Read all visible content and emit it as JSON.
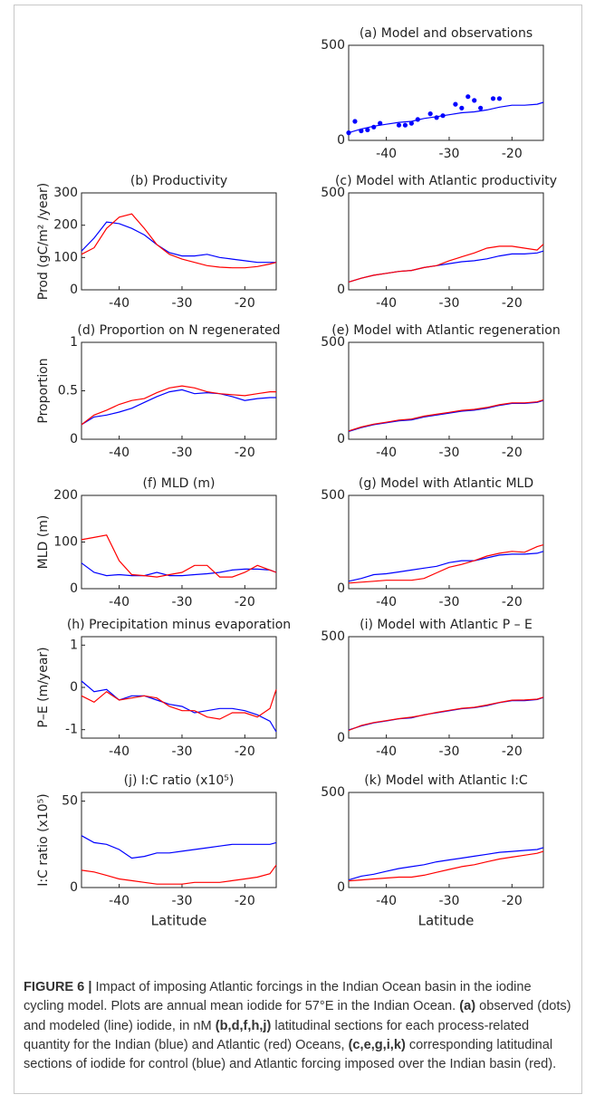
{
  "chart_data": [
    {
      "type": "line",
      "title": "(a) Model and observations",
      "x": [
        -46,
        -44,
        -42,
        -40,
        -38,
        -36,
        -34,
        -32,
        -30,
        -28,
        -26,
        -24,
        -22,
        -20,
        -18,
        -16,
        -15
      ],
      "xlim": [
        -46,
        -15
      ],
      "xticks": [
        -40,
        -30,
        -20
      ],
      "ylim": [
        0,
        500
      ],
      "yticks": [
        0,
        500
      ],
      "series": [
        {
          "color": "#0000ff",
          "values": [
            40,
            60,
            75,
            85,
            95,
            100,
            115,
            125,
            135,
            145,
            150,
            160,
            175,
            185,
            185,
            190,
            200
          ]
        },
        {
          "color": "#0000ff",
          "marker": "dot",
          "x": [
            -46,
            -45,
            -44,
            -43,
            -42,
            -41,
            -38,
            -37,
            -36,
            -35,
            -33,
            -32,
            -31,
            -29,
            -28,
            -27,
            -26,
            -25,
            -23,
            -22
          ],
          "values": [
            40,
            100,
            50,
            55,
            70,
            90,
            80,
            80,
            90,
            110,
            140,
            120,
            130,
            190,
            170,
            230,
            210,
            170,
            220,
            220
          ]
        }
      ]
    },
    {
      "type": "line",
      "title": "(b) Productivity",
      "ylabel": "Prod (gC/m² /year)",
      "x": [
        -46,
        -44,
        -42,
        -40,
        -38,
        -36,
        -34,
        -32,
        -30,
        -28,
        -26,
        -24,
        -22,
        -20,
        -18,
        -16,
        -15
      ],
      "xlim": [
        -46,
        -15
      ],
      "xticks": [
        -40,
        -30,
        -20
      ],
      "ylim": [
        0,
        300
      ],
      "yticks": [
        0,
        100,
        200,
        300
      ],
      "series": [
        {
          "color": "#0000ff",
          "values": [
            120,
            160,
            210,
            205,
            190,
            170,
            140,
            115,
            105,
            105,
            110,
            100,
            95,
            90,
            85,
            85,
            85
          ]
        },
        {
          "color": "#ff0000",
          "values": [
            110,
            130,
            190,
            225,
            235,
            190,
            140,
            110,
            95,
            85,
            75,
            70,
            68,
            68,
            72,
            80,
            85
          ]
        }
      ]
    },
    {
      "type": "line",
      "title": "(c) Model with Atlantic productivity",
      "x": [
        -46,
        -44,
        -42,
        -40,
        -38,
        -36,
        -34,
        -32,
        -30,
        -28,
        -26,
        -24,
        -22,
        -20,
        -18,
        -16,
        -15
      ],
      "xlim": [
        -46,
        -15
      ],
      "xticks": [
        -40,
        -30,
        -20
      ],
      "ylim": [
        0,
        500
      ],
      "yticks": [
        0,
        500
      ],
      "series": [
        {
          "color": "#0000ff",
          "values": [
            40,
            60,
            75,
            85,
            95,
            100,
            115,
            125,
            135,
            145,
            150,
            160,
            175,
            185,
            185,
            190,
            200
          ]
        },
        {
          "color": "#ff0000",
          "values": [
            40,
            60,
            75,
            85,
            95,
            100,
            115,
            125,
            150,
            170,
            190,
            215,
            225,
            225,
            215,
            205,
            235
          ]
        }
      ]
    },
    {
      "type": "line",
      "title": "(d) Proportion on N regenerated",
      "ylabel": "Proportion",
      "x": [
        -46,
        -44,
        -42,
        -40,
        -38,
        -36,
        -34,
        -32,
        -30,
        -28,
        -26,
        -24,
        -22,
        -20,
        -18,
        -16,
        -15
      ],
      "xlim": [
        -46,
        -15
      ],
      "xticks": [
        -40,
        -30,
        -20
      ],
      "ylim": [
        0,
        1
      ],
      "yticks": [
        0,
        0.5,
        1
      ],
      "series": [
        {
          "color": "#0000ff",
          "values": [
            0.15,
            0.23,
            0.25,
            0.28,
            0.32,
            0.38,
            0.44,
            0.49,
            0.51,
            0.47,
            0.48,
            0.47,
            0.44,
            0.4,
            0.42,
            0.43,
            0.43
          ]
        },
        {
          "color": "#ff0000",
          "values": [
            0.15,
            0.25,
            0.3,
            0.36,
            0.4,
            0.42,
            0.48,
            0.53,
            0.55,
            0.53,
            0.49,
            0.47,
            0.46,
            0.45,
            0.47,
            0.49,
            0.49
          ]
        }
      ]
    },
    {
      "type": "line",
      "title": "(e) Model with Atlantic regeneration",
      "x": [
        -46,
        -44,
        -42,
        -40,
        -38,
        -36,
        -34,
        -32,
        -30,
        -28,
        -26,
        -24,
        -22,
        -20,
        -18,
        -16,
        -15
      ],
      "xlim": [
        -46,
        -15
      ],
      "xticks": [
        -40,
        -30,
        -20
      ],
      "ylim": [
        0,
        500
      ],
      "yticks": [
        0,
        500
      ],
      "series": [
        {
          "color": "#0000ff",
          "values": [
            40,
            60,
            75,
            85,
            95,
            100,
            115,
            125,
            135,
            145,
            150,
            160,
            175,
            185,
            185,
            190,
            200
          ]
        },
        {
          "color": "#ff0000",
          "values": [
            43,
            63,
            78,
            88,
            99,
            104,
            119,
            129,
            139,
            149,
            154,
            164,
            178,
            188,
            188,
            193,
            203
          ]
        }
      ]
    },
    {
      "type": "line",
      "title": "(f) MLD (m)",
      "ylabel": "MLD (m)",
      "x": [
        -46,
        -44,
        -42,
        -40,
        -38,
        -36,
        -34,
        -32,
        -30,
        -28,
        -26,
        -24,
        -22,
        -20,
        -18,
        -16,
        -15
      ],
      "xlim": [
        -46,
        -15
      ],
      "xticks": [
        -40,
        -30,
        -20
      ],
      "ylim": [
        0,
        200
      ],
      "yticks": [
        0,
        100,
        200
      ],
      "series": [
        {
          "color": "#0000ff",
          "values": [
            55,
            35,
            28,
            30,
            28,
            28,
            35,
            28,
            28,
            30,
            32,
            35,
            40,
            42,
            42,
            40,
            35
          ]
        },
        {
          "color": "#ff0000",
          "values": [
            105,
            110,
            115,
            60,
            30,
            28,
            25,
            30,
            35,
            50,
            50,
            25,
            25,
            35,
            50,
            40,
            35
          ]
        }
      ]
    },
    {
      "type": "line",
      "title": "(g) Model with Atlantic MLD",
      "x": [
        -46,
        -44,
        -42,
        -40,
        -38,
        -36,
        -34,
        -32,
        -30,
        -28,
        -26,
        -24,
        -22,
        -20,
        -18,
        -16,
        -15
      ],
      "xlim": [
        -46,
        -15
      ],
      "xticks": [
        -40,
        -30,
        -20
      ],
      "ylim": [
        0,
        500
      ],
      "yticks": [
        0,
        500
      ],
      "series": [
        {
          "color": "#0000ff",
          "values": [
            40,
            55,
            75,
            80,
            90,
            100,
            110,
            120,
            140,
            150,
            150,
            165,
            180,
            185,
            185,
            190,
            200
          ]
        },
        {
          "color": "#ff0000",
          "values": [
            30,
            35,
            40,
            45,
            45,
            45,
            55,
            85,
            115,
            130,
            150,
            175,
            190,
            200,
            195,
            225,
            235
          ]
        }
      ]
    },
    {
      "type": "line",
      "title": "(h) Precipitation minus evaporation",
      "ylabel": "P–E (m/year)",
      "x": [
        -46,
        -44,
        -42,
        -40,
        -38,
        -36,
        -34,
        -32,
        -30,
        -28,
        -26,
        -24,
        -22,
        -20,
        -18,
        -16,
        -15
      ],
      "xlim": [
        -46,
        -15
      ],
      "xticks": [
        -40,
        -30,
        -20
      ],
      "ylim": [
        -1.2,
        1.2
      ],
      "yticks": [
        -1,
        0,
        1
      ],
      "series": [
        {
          "color": "#0000ff",
          "values": [
            0.15,
            -0.1,
            -0.05,
            -0.3,
            -0.2,
            -0.2,
            -0.3,
            -0.4,
            -0.45,
            -0.6,
            -0.55,
            -0.5,
            -0.5,
            -0.55,
            -0.65,
            -0.8,
            -1.05
          ]
        },
        {
          "color": "#ff0000",
          "values": [
            -0.2,
            -0.35,
            -0.1,
            -0.3,
            -0.25,
            -0.2,
            -0.25,
            -0.45,
            -0.55,
            -0.55,
            -0.7,
            -0.75,
            -0.6,
            -0.6,
            -0.7,
            -0.5,
            -0.05
          ]
        }
      ]
    },
    {
      "type": "line",
      "title": "(i) Model with Atlantic P – E",
      "x": [
        -46,
        -44,
        -42,
        -40,
        -38,
        -36,
        -34,
        -32,
        -30,
        -28,
        -26,
        -24,
        -22,
        -20,
        -18,
        -16,
        -15
      ],
      "xlim": [
        -46,
        -15
      ],
      "xticks": [
        -40,
        -30,
        -20
      ],
      "ylim": [
        0,
        500
      ],
      "yticks": [
        0,
        500
      ],
      "series": [
        {
          "color": "#0000ff",
          "values": [
            40,
            60,
            75,
            85,
            95,
            100,
            115,
            125,
            135,
            145,
            150,
            160,
            175,
            185,
            185,
            190,
            200
          ]
        },
        {
          "color": "#ff0000",
          "values": [
            38,
            62,
            77,
            86,
            96,
            103,
            114,
            127,
            137,
            147,
            152,
            163,
            176,
            187,
            188,
            192,
            202
          ]
        }
      ]
    },
    {
      "type": "line",
      "title": "(j) I:C ratio (x10⁵)",
      "ylabel": "I:C ratio (x10⁵)",
      "xlabel": "Latitude",
      "x": [
        -46,
        -44,
        -42,
        -40,
        -38,
        -36,
        -34,
        -32,
        -30,
        -28,
        -26,
        -24,
        -22,
        -20,
        -18,
        -16,
        -15
      ],
      "xlim": [
        -46,
        -15
      ],
      "xticks": [
        -40,
        -30,
        -20
      ],
      "ylim": [
        0,
        55
      ],
      "yticks": [
        0,
        50
      ],
      "series": [
        {
          "color": "#0000ff",
          "values": [
            30,
            26,
            25,
            22,
            17,
            18,
            20,
            20,
            21,
            22,
            23,
            24,
            25,
            25,
            25,
            25,
            26
          ]
        },
        {
          "color": "#ff0000",
          "values": [
            10,
            9,
            7,
            5,
            4,
            3,
            2,
            2,
            2,
            3,
            3,
            3,
            4,
            5,
            6,
            8,
            13
          ]
        }
      ]
    },
    {
      "type": "line",
      "title": "(k) Model with Atlantic I:C",
      "xlabel": "Latitude",
      "x": [
        -46,
        -44,
        -42,
        -40,
        -38,
        -36,
        -34,
        -32,
        -30,
        -28,
        -26,
        -24,
        -22,
        -20,
        -18,
        -16,
        -15
      ],
      "xlim": [
        -46,
        -15
      ],
      "xticks": [
        -40,
        -30,
        -20
      ],
      "ylim": [
        0,
        500
      ],
      "yticks": [
        0,
        500
      ],
      "series": [
        {
          "color": "#0000ff",
          "values": [
            40,
            60,
            70,
            85,
            100,
            110,
            120,
            135,
            145,
            155,
            165,
            175,
            185,
            190,
            195,
            200,
            210
          ]
        },
        {
          "color": "#ff0000",
          "values": [
            35,
            40,
            45,
            50,
            55,
            55,
            65,
            80,
            95,
            110,
            120,
            135,
            150,
            160,
            170,
            180,
            190
          ]
        }
      ]
    }
  ],
  "caption": [
    {
      "text": "FIGURE 6 |",
      "bold": true
    },
    {
      "text": " Impact of imposing Atlantic forcings in the Indian Ocean basin in the iodine cycling model. Plots are annual mean iodide for 57°E in the Indian Ocean. ",
      "bold": false
    },
    {
      "text": "(a)",
      "bold": true
    },
    {
      "text": " observed (dots) and modeled (line) iodide, in nM ",
      "bold": false
    },
    {
      "text": "(b,d,f,h,j)",
      "bold": true
    },
    {
      "text": " latitudinal sections for each process-related quantity for the Indian (blue) and Atlantic (red) Oceans, ",
      "bold": false
    },
    {
      "text": "(c,e,g,i,k)",
      "bold": true
    },
    {
      "text": " corresponding latitudinal sections of iodide for control (blue) and Atlantic forcing imposed over the Indian basin (red).",
      "bold": false
    }
  ]
}
